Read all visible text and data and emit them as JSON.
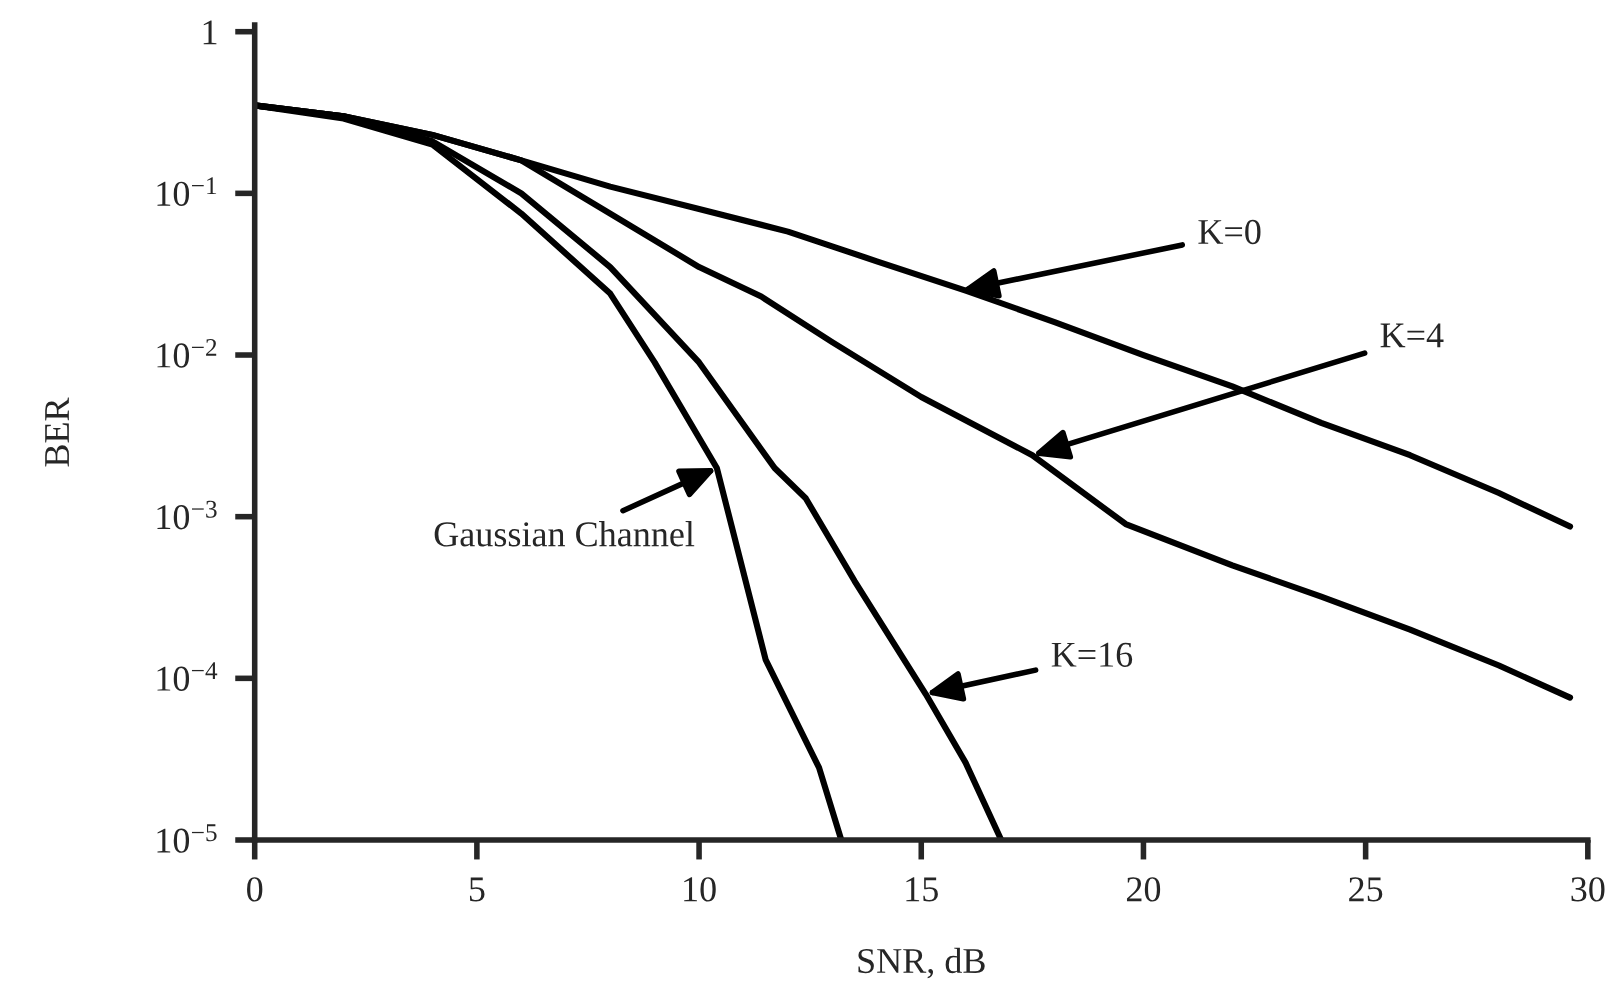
{
  "chart_data": {
    "type": "line",
    "xlabel": "SNR, dB",
    "ylabel": "BER",
    "log": "y",
    "xlim": [
      0,
      30
    ],
    "xticks": [
      0,
      5,
      10,
      15,
      20,
      25,
      30
    ],
    "ylim": [
      1e-05,
      1.1
    ],
    "yticks": [
      {
        "value": 1e-05,
        "label": "10$^{−5}$"
      },
      {
        "value": 0.0001,
        "label": "10$^{−4}$"
      },
      {
        "value": 0.001,
        "label": "10$^{−3}$"
      },
      {
        "value": 0.01,
        "label": "10$^{−2}$"
      },
      {
        "value": 0.1,
        "label": "10$^{−1}$"
      },
      {
        "value": 1,
        "label": "1"
      }
    ],
    "grid": false,
    "legend": false,
    "marker": "none",
    "line_style": "solid",
    "series": [
      {
        "color": "#000000",
        "x": [
          0,
          2,
          4,
          6,
          8,
          10,
          12,
          14,
          16,
          18,
          20,
          22,
          24,
          26,
          28,
          29.6
        ],
        "values": [
          0.35,
          0.3,
          0.23,
          0.16,
          0.11,
          0.08,
          0.058,
          0.038,
          0.025,
          0.016,
          0.01,
          0.0064,
          0.0038,
          0.0024,
          0.0014,
          0.00087
        ]
      },
      {
        "color": "#000000",
        "x": [
          0,
          2,
          4,
          6,
          8,
          10,
          11.4,
          13,
          15,
          17.5,
          19.6,
          22,
          24,
          26,
          28,
          29.6
        ],
        "values": [
          0.35,
          0.3,
          0.23,
          0.16,
          0.075,
          0.035,
          0.023,
          0.012,
          0.0055,
          0.0024,
          0.0009,
          0.0005,
          0.00032,
          0.0002,
          0.00012,
          7.6e-05
        ]
      },
      {
        "color": "#000000",
        "x": [
          0,
          2,
          4,
          6,
          8,
          10,
          11.7,
          12.4,
          13.5,
          15.1,
          16,
          16.8
        ],
        "values": [
          0.35,
          0.3,
          0.21,
          0.1,
          0.035,
          0.009,
          0.002,
          0.0013,
          0.0004,
          8e-05,
          3e-05,
          1e-05
        ]
      },
      {
        "color": "#000000",
        "x": [
          0,
          2,
          4,
          6,
          8,
          9,
          10.4,
          11.5,
          12.7,
          13.2
        ],
        "values": [
          0.35,
          0.29,
          0.2,
          0.075,
          0.024,
          0.009,
          0.002,
          0.00013,
          2.8e-05,
          1e-05
        ]
      }
    ],
    "annotations": [
      {
        "text": "K=0",
        "x": 15.9,
        "y": 0.025
      },
      {
        "text": "K=4",
        "x": 17.5,
        "y": 0.0024
      },
      {
        "text": "K=16",
        "x": 15.1,
        "y": 8e-05
      },
      {
        "text": "Gaussian Channel",
        "x": 10.4,
        "y": 0.002
      }
    ]
  }
}
